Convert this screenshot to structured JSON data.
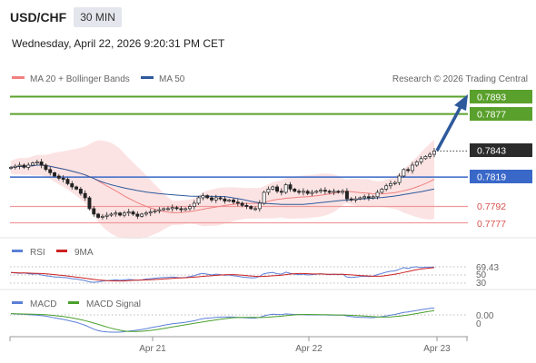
{
  "header": {
    "pair": "USD/CHF",
    "timeframe": "30 MIN",
    "timestamp": "Wednesday, April 22, 2026 9:20:31 PM CET"
  },
  "legend": {
    "ma20": "MA 20 + Bollinger Bands",
    "ma50": "MA 50",
    "source": "Research © 2026 Trading Central",
    "rsi": "RSI",
    "rsi_ma": "9MA",
    "macd": "MACD",
    "macd_signal": "MACD Signal"
  },
  "colors": {
    "ma20": "#f08080",
    "ma50": "#2e5a9c",
    "resistance": "#5aa02c",
    "support": "#ef9a9a",
    "pivot": "#3a68c8",
    "arrow": "#2e5a9c",
    "rsi": "#5b7fd6",
    "rsi_ma": "#cc2222",
    "macd": "#5b7fd6",
    "macd_signal": "#4aa02c"
  },
  "chart_data": [
    {
      "type": "candlestick",
      "title": "USD/CHF",
      "ylim": [
        0.776,
        0.7905
      ],
      "x_ticks": [
        "Apr 21",
        "Apr 22",
        "Apr 23"
      ],
      "levels": [
        {
          "value": "0.7893",
          "kind": "resistance"
        },
        {
          "value": "0.7877",
          "kind": "resistance"
        },
        {
          "value": "0.7843",
          "kind": "last"
        },
        {
          "value": "0.7819",
          "kind": "pivot"
        },
        {
          "value": "0.7792",
          "kind": "support"
        },
        {
          "value": "0.7777",
          "kind": "support"
        }
      ],
      "close": [
        0.7828,
        0.7829,
        0.783,
        0.7828,
        0.783,
        0.7832,
        0.7833,
        0.783,
        0.7826,
        0.7823,
        0.782,
        0.7818,
        0.7817,
        0.7813,
        0.781,
        0.7808,
        0.7804,
        0.78,
        0.779,
        0.7785,
        0.7782,
        0.7783,
        0.7784,
        0.7785,
        0.7786,
        0.7784,
        0.7786,
        0.7787,
        0.7785,
        0.7783,
        0.7785,
        0.7786,
        0.7787,
        0.7788,
        0.7789,
        0.779,
        0.779,
        0.7791,
        0.779,
        0.7789,
        0.779,
        0.7792,
        0.7795,
        0.78,
        0.7802,
        0.78,
        0.7798,
        0.78,
        0.7799,
        0.7797,
        0.7798,
        0.7796,
        0.7795,
        0.7793,
        0.7792,
        0.779,
        0.779,
        0.7795,
        0.7805,
        0.7808,
        0.781,
        0.7806,
        0.7805,
        0.7812,
        0.7808,
        0.7806,
        0.7805,
        0.7806,
        0.7804,
        0.7805,
        0.7806,
        0.7807,
        0.7806,
        0.7805,
        0.7806,
        0.7805,
        0.7806,
        0.7799,
        0.7798,
        0.7799,
        0.78,
        0.7801,
        0.78,
        0.7801,
        0.7805,
        0.7808,
        0.7811,
        0.7813,
        0.7814,
        0.782,
        0.7826,
        0.7825,
        0.783,
        0.7833,
        0.7836,
        0.7838,
        0.784,
        0.7843
      ]
    },
    {
      "type": "line",
      "title": "RSI",
      "ylim": [
        30,
        70
      ],
      "y_ticks": [
        "70",
        "50",
        "30"
      ],
      "last_value": "69.43",
      "series": [
        {
          "name": "RSI"
        },
        {
          "name": "9MA"
        }
      ],
      "rsi": [
        56,
        55,
        54,
        55,
        53,
        52,
        53,
        50,
        48,
        47,
        45,
        45,
        44,
        43,
        41,
        40,
        38,
        36,
        33,
        32,
        33,
        35,
        36,
        37,
        38,
        37,
        38,
        39,
        38,
        37,
        38,
        40,
        41,
        42,
        43,
        44,
        44,
        45,
        44,
        43,
        44,
        46,
        48,
        52,
        54,
        52,
        50,
        52,
        51,
        49,
        50,
        48,
        47,
        45,
        44,
        43,
        43,
        47,
        53,
        55,
        56,
        53,
        52,
        57,
        54,
        52,
        51,
        52,
        50,
        51,
        52,
        53,
        52,
        51,
        52,
        51,
        52,
        45,
        44,
        45,
        46,
        47,
        46,
        47,
        51,
        54,
        57,
        59,
        60,
        64,
        68,
        66,
        69,
        70,
        68,
        69,
        69,
        69.43
      ]
    },
    {
      "type": "line",
      "title": "MACD",
      "ylim": [
        -0.001,
        0.0004
      ],
      "y_ticks": [
        "0.00"
      ],
      "series": [
        {
          "name": "MACD"
        },
        {
          "name": "MACD Signal"
        }
      ],
      "macd": [
        5e-05,
        4e-05,
        3e-05,
        3e-05,
        1e-05,
        0.0,
        -1e-05,
        -3e-05,
        -5e-05,
        -8e-05,
        -0.00012,
        -0.00015,
        -0.00018,
        -0.00022,
        -0.00026,
        -0.0003,
        -0.00036,
        -0.00042,
        -0.0005,
        -0.00058,
        -0.00064,
        -0.00067,
        -0.00069,
        -0.0007,
        -0.0007,
        -0.0007,
        -0.00068,
        -0.00066,
        -0.00064,
        -0.00062,
        -0.00059,
        -0.00056,
        -0.00052,
        -0.00049,
        -0.00046,
        -0.00042,
        -0.00039,
        -0.00036,
        -0.00034,
        -0.00032,
        -0.0003,
        -0.00027,
        -0.00024,
        -0.00019,
        -0.00015,
        -0.00013,
        -0.00012,
        -0.0001,
        -9e-05,
        -9e-05,
        -8e-05,
        -9e-05,
        -0.0001,
        -0.00011,
        -0.00012,
        -0.00013,
        -0.00013,
        -0.0001,
        -4e-05,
        0.0,
        3e-05,
        2e-05,
        1e-05,
        4e-05,
        3e-05,
        2e-05,
        1e-05,
        1e-05,
        0.0,
        0.0,
        0.0,
        0.0,
        0.0,
        -1e-05,
        -1e-05,
        -1e-05,
        -1e-05,
        -4e-05,
        -7e-05,
        -9e-05,
        -0.0001,
        -0.0001,
        -0.00011,
        -0.00011,
        -9e-05,
        -7e-05,
        -4e-05,
        -1e-05,
        2e-05,
        6e-05,
        0.0001,
        0.00012,
        0.00015,
        0.00018,
        0.00021,
        0.00024,
        0.00026,
        0.00028
      ]
    }
  ]
}
